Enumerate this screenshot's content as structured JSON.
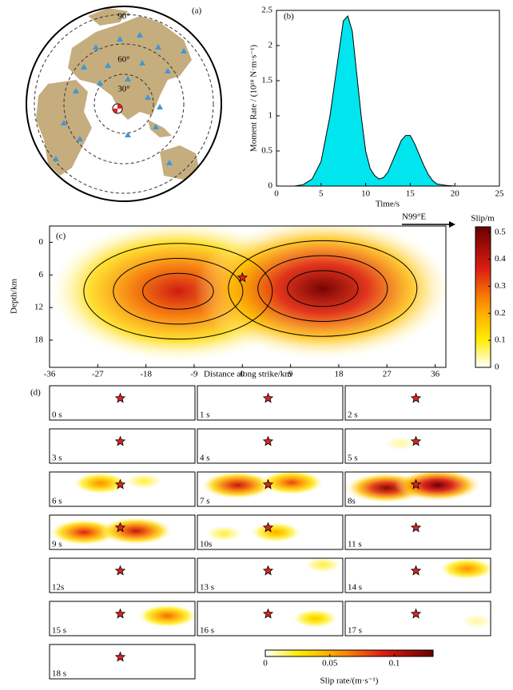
{
  "chart_data": [
    {
      "type": "map",
      "label": "(a)",
      "ring_labels": [
        "90°",
        "60°",
        "30°"
      ]
    },
    {
      "type": "area",
      "label": "(b)",
      "xlabel": "Time/s",
      "ylabel": "Moment Rate / (10¹⁸ N·m·s⁻¹)",
      "color": "#00e5ee",
      "x": [
        0,
        2,
        3,
        4,
        5,
        6,
        7,
        7.5,
        8,
        8.5,
        9,
        9.5,
        10,
        10.5,
        11,
        11.5,
        12,
        12.5,
        13,
        13.5,
        14,
        14.5,
        15,
        15.5,
        16,
        16.5,
        17,
        17.5,
        18,
        19,
        20
      ],
      "values": [
        0,
        0,
        0.02,
        0.1,
        0.35,
        1.0,
        1.9,
        2.35,
        2.42,
        2.2,
        1.6,
        1.0,
        0.5,
        0.25,
        0.15,
        0.1,
        0.12,
        0.2,
        0.35,
        0.5,
        0.65,
        0.72,
        0.72,
        0.6,
        0.45,
        0.3,
        0.17,
        0.08,
        0.03,
        0.01,
        0
      ],
      "xlim": [
        0,
        25
      ],
      "ylim": [
        0,
        2.5
      ],
      "xticks": [
        0,
        5,
        10,
        15,
        20,
        25
      ],
      "yticks": [
        0,
        0.5,
        1,
        1.5,
        2,
        2.5
      ]
    },
    {
      "type": "heatmap",
      "label": "(c)",
      "xlabel": "Distance along strike/km",
      "ylabel": "Depth/km",
      "annotation": "N99°E",
      "colorbar_title": "Slip/m",
      "clim": [
        0,
        0.52
      ],
      "cticks": [
        0,
        0.1,
        0.2,
        0.3,
        0.4,
        0.5
      ],
      "xlim": [
        -36,
        38
      ],
      "ylim": [
        -3,
        23
      ],
      "xticks": [
        -36,
        -27,
        -18,
        -9,
        0,
        9,
        18,
        27,
        36
      ],
      "yticks": [
        0,
        6,
        12,
        18
      ],
      "hypocenter": {
        "x": 0,
        "depth": 6.5
      },
      "patches": [
        {
          "x": -12,
          "depth": 9,
          "slip": 0.38
        },
        {
          "x": 15,
          "depth": 8.5,
          "slip": 0.5
        }
      ]
    },
    {
      "type": "snapshots",
      "label": "(d)",
      "colorbar_title": "Slip rate/(m·s⁻¹)",
      "clim": [
        0,
        0.13
      ],
      "cticks": [
        0,
        0.05,
        0.1
      ],
      "xlim": [
        -36,
        38
      ],
      "ylim": [
        -3,
        23
      ],
      "hypocenter": {
        "x": 0,
        "depth": 6.5
      },
      "frames": [
        {
          "label": "0 s",
          "patches": []
        },
        {
          "label": "1 s",
          "patches": []
        },
        {
          "label": "2 s",
          "patches": []
        },
        {
          "label": "3 s",
          "patches": []
        },
        {
          "label": "4 s",
          "patches": []
        },
        {
          "label": "5 s",
          "patches": [
            {
              "x": -8,
              "depth": 8,
              "rate": 0.01
            }
          ]
        },
        {
          "label": "6 s",
          "patches": [
            {
              "x": -10,
              "depth": 5.5,
              "rate": 0.06
            },
            {
              "x": 12,
              "depth": 4,
              "rate": 0.02
            }
          ]
        },
        {
          "label": "7 s",
          "patches": [
            {
              "x": -15.5,
              "depth": 7,
              "rate": 0.1
            },
            {
              "x": 12,
              "depth": 5,
              "rate": 0.08
            }
          ]
        },
        {
          "label": "8s",
          "patches": [
            {
              "x": -15,
              "depth": 9,
              "rate": 0.12
            },
            {
              "x": 11,
              "depth": 7,
              "rate": 0.13
            }
          ]
        },
        {
          "label": "9 s",
          "patches": [
            {
              "x": -18.5,
              "depth": 10,
              "rate": 0.09
            },
            {
              "x": 8,
              "depth": 9,
              "rate": 0.1
            }
          ]
        },
        {
          "label": "10s",
          "patches": [
            {
              "x": -22.5,
              "depth": 11,
              "rate": 0.02
            },
            {
              "x": 4,
              "depth": 10,
              "rate": 0.05
            }
          ]
        },
        {
          "label": "11 s",
          "patches": []
        },
        {
          "label": "12s",
          "patches": []
        },
        {
          "label": "13 s",
          "patches": [
            {
              "x": 28,
              "depth": 2,
              "rate": 0.02
            }
          ]
        },
        {
          "label": "14 s",
          "patches": [
            {
              "x": 26,
              "depth": 5,
              "rate": 0.06
            }
          ]
        },
        {
          "label": "15 s",
          "patches": [
            {
              "x": 24,
              "depth": 8,
              "rate": 0.07
            }
          ]
        },
        {
          "label": "16 s",
          "patches": [
            {
              "x": 24,
              "depth": 10,
              "rate": 0.04
            }
          ]
        },
        {
          "label": "17 s",
          "patches": [
            {
              "x": 31,
              "depth": 12,
              "rate": 0.01
            }
          ]
        },
        {
          "label": "18 s",
          "patches": []
        }
      ]
    }
  ]
}
